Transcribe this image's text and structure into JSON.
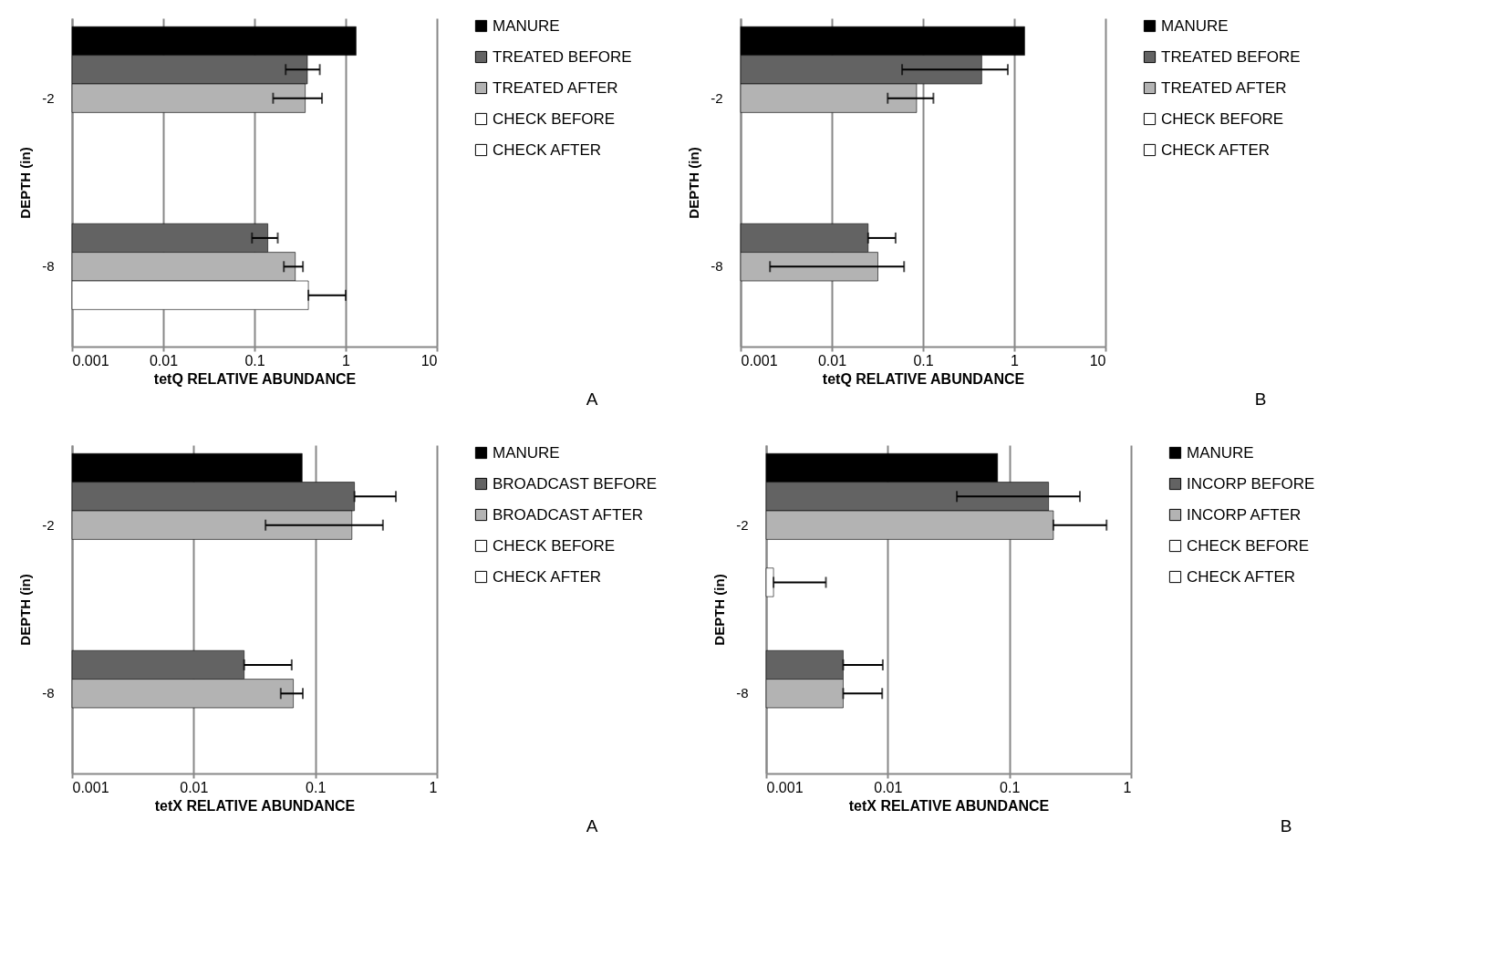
{
  "chart_data": [
    {
      "type": "bar",
      "orientation": "horizontal",
      "log": "x",
      "xlabel": "tetQ RELATIVE ABUNDANCE",
      "ylabel": "DEPTH (in)",
      "categories": [
        "-2",
        "-8"
      ],
      "xlim": [
        0.001,
        10
      ],
      "xticks": [
        0.001,
        0.01,
        0.1,
        1,
        10
      ],
      "grid": "x",
      "legend": "right",
      "annotations": [
        "A"
      ],
      "series": [
        {
          "name": "MANURE",
          "color": "#000000",
          "values": [
            1.3,
            null
          ]
        },
        {
          "name": "TREATED BEFORE",
          "color": "#636363",
          "values": [
            0.38,
            0.14
          ],
          "errors": [
            [
              0.22,
              0.52
            ],
            [
              0.094,
              0.18
            ]
          ]
        },
        {
          "name": "TREATED AFTER",
          "color": "#b3b3b3",
          "values": [
            0.36,
            0.28
          ],
          "errors": [
            [
              0.16,
              0.55
            ],
            [
              0.21,
              0.34
            ]
          ]
        },
        {
          "name": "CHECK BEFORE",
          "color": "#ffffff",
          "values": [
            null,
            0.39
          ],
          "errors": [
            null,
            [
              0.39,
              1.0
            ]
          ]
        },
        {
          "name": "CHECK AFTER",
          "color": "#ffffff",
          "values": [
            null,
            null
          ]
        }
      ]
    },
    {
      "type": "bar",
      "orientation": "horizontal",
      "log": "x",
      "xlabel": "tetQ  RELATIVE ABUNDANCE",
      "ylabel": "DEPTH (in)",
      "categories": [
        "-2",
        "-8"
      ],
      "xlim": [
        0.001,
        10
      ],
      "xticks": [
        0.001,
        0.01,
        0.1,
        1,
        10
      ],
      "grid": "x",
      "legend": "right",
      "annotations": [
        "B"
      ],
      "series": [
        {
          "name": "MANURE",
          "color": "#000000",
          "values": [
            1.3,
            null
          ]
        },
        {
          "name": "TREATED BEFORE",
          "color": "#636363",
          "values": [
            0.44,
            0.025
          ],
          "errors": [
            [
              0.059,
              0.85
            ],
            [
              0.025,
              0.05
            ]
          ]
        },
        {
          "name": "TREATED AFTER",
          "color": "#b3b3b3",
          "values": [
            0.085,
            0.032
          ],
          "errors": [
            [
              0.041,
              0.13
            ],
            [
              0.0021,
              0.062
            ]
          ]
        },
        {
          "name": "CHECK BEFORE",
          "color": "#ffffff",
          "values": [
            null,
            null
          ]
        },
        {
          "name": "CHECK AFTER",
          "color": "#ffffff",
          "values": [
            null,
            null
          ]
        }
      ]
    },
    {
      "type": "bar",
      "orientation": "horizontal",
      "log": "x",
      "xlabel": "tetX  RELATIVE ABUNDANCE",
      "ylabel": "DEPTH (in)",
      "categories": [
        "-2",
        "-8"
      ],
      "xlim": [
        0.001,
        1
      ],
      "xticks": [
        0.001,
        0.01,
        0.1,
        1
      ],
      "grid": "x",
      "legend": "right",
      "annotations": [
        "A"
      ],
      "series": [
        {
          "name": "MANURE",
          "color": "#000000",
          "values": [
            0.078,
            null
          ]
        },
        {
          "name": "BROADCAST BEFORE",
          "color": "#636363",
          "values": [
            0.21,
            0.026
          ],
          "errors": [
            [
              0.21,
              0.46
            ],
            [
              0.026,
              0.064
            ]
          ]
        },
        {
          "name": "BROADCAST AFTER",
          "color": "#b3b3b3",
          "values": [
            0.2,
            0.066
          ],
          "errors": [
            [
              0.039,
              0.36
            ],
            [
              0.052,
              0.079
            ]
          ]
        },
        {
          "name": "CHECK BEFORE",
          "color": "#ffffff",
          "values": [
            null,
            null
          ]
        },
        {
          "name": "CHECK AFTER",
          "color": "#ffffff",
          "values": [
            null,
            null
          ]
        }
      ]
    },
    {
      "type": "bar",
      "orientation": "horizontal",
      "log": "x",
      "xlabel": "tetX  RELATIVE ABUNDANCE",
      "ylabel": "DEPTH (in)",
      "categories": [
        "-2",
        "-8"
      ],
      "xlim": [
        0.001,
        1
      ],
      "xticks": [
        0.001,
        0.01,
        0.1,
        1
      ],
      "grid": "x",
      "legend": "right",
      "annotations": [
        "B"
      ],
      "series": [
        {
          "name": "MANURE",
          "color": "#000000",
          "values": [
            0.08,
            null
          ]
        },
        {
          "name": "INCORP BEFORE",
          "color": "#636363",
          "values": [
            0.21,
            0.0043
          ],
          "errors": [
            [
              0.037,
              0.38
            ],
            [
              0.0043,
              0.0091
            ]
          ]
        },
        {
          "name": "INCORP AFTER",
          "color": "#b3b3b3",
          "values": [
            0.23,
            0.0043
          ],
          "errors": [
            [
              0.23,
              0.63
            ],
            [
              0.0043,
              0.009
            ]
          ]
        },
        {
          "name": "CHECK BEFORE",
          "color": "#ffffff",
          "values": [
            null,
            null
          ]
        },
        {
          "name": "CHECK AFTER",
          "color": "#ffffff",
          "values": [
            0.00115,
            null
          ],
          "errors": [
            [
              0.00115,
              0.0031
            ],
            null
          ]
        }
      ]
    }
  ]
}
